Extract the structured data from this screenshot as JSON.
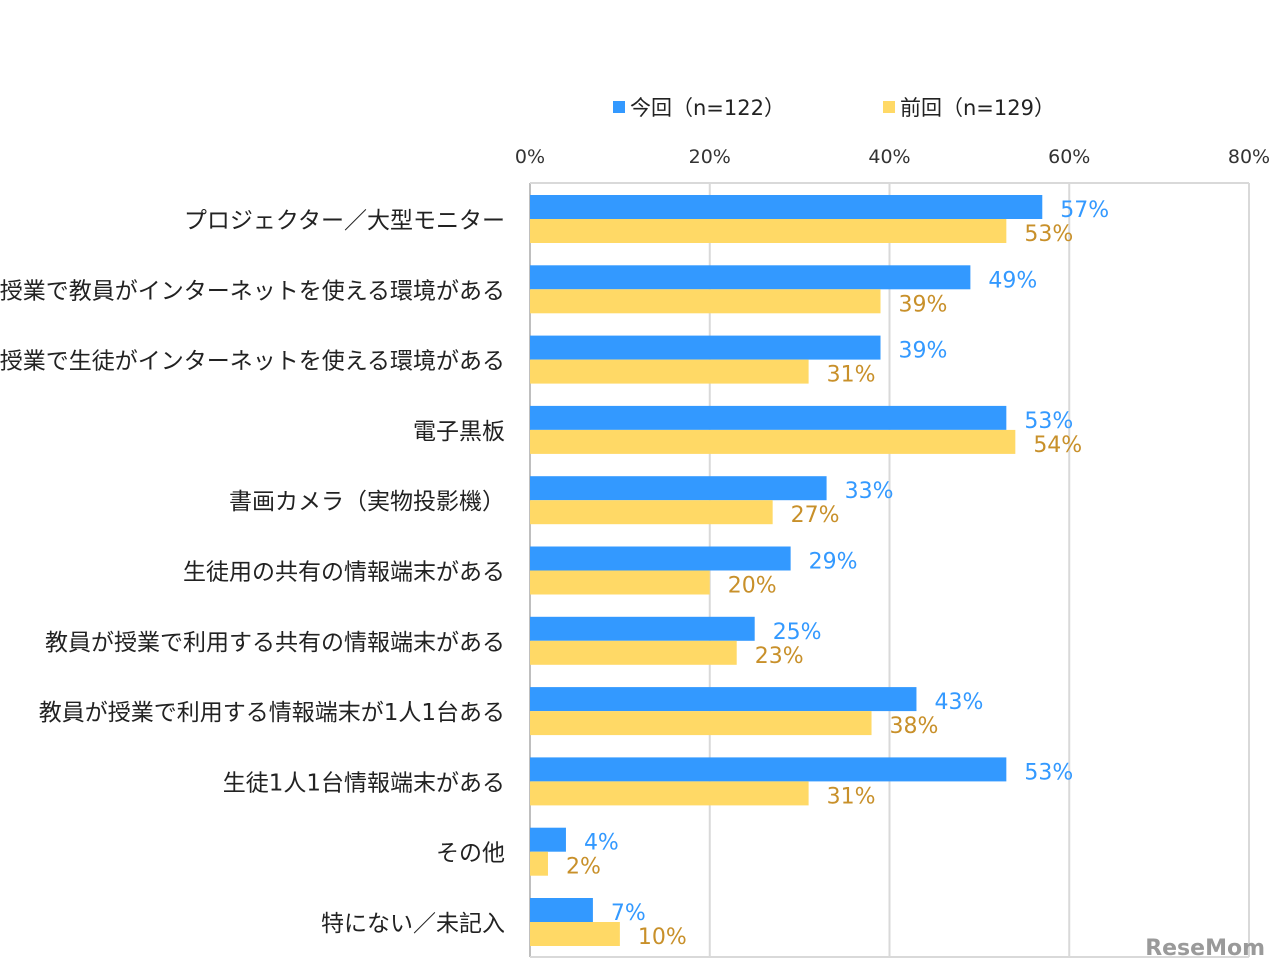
{
  "chart_data": {
    "type": "bar",
    "orientation": "horizontal",
    "categories": [
      "プロジェクター／大型モニター",
      "授業で教員がインターネットを使える環境がある",
      "授業で生徒がインターネットを使える環境がある",
      "電子黒板",
      "書画カメラ（実物投影機）",
      "生徒用の共有の情報端末がある",
      "教員が授業で利用する共有の情報端末がある",
      "教員が授業で利用する情報端末が1人1台ある",
      "生徒1人1台情報端末がある",
      "その他",
      "特にない／未記入"
    ],
    "series": [
      {
        "name": "今回（n=122）",
        "color": "#3399ff",
        "label_color": "#3399ff",
        "values": [
          57,
          49,
          39,
          53,
          33,
          29,
          25,
          43,
          53,
          4,
          7
        ]
      },
      {
        "name": "前回（n=129）",
        "color": "#ffd966",
        "label_color": "#c8902a",
        "values": [
          53,
          39,
          31,
          54,
          27,
          20,
          23,
          38,
          31,
          2,
          10
        ]
      }
    ],
    "xlim": [
      0,
      80
    ],
    "xticks": [
      "0%",
      "20%",
      "40%",
      "60%",
      "80%"
    ],
    "grid": true,
    "legend_position": "top",
    "value_suffix": "%"
  },
  "watermark": "ReseMom"
}
